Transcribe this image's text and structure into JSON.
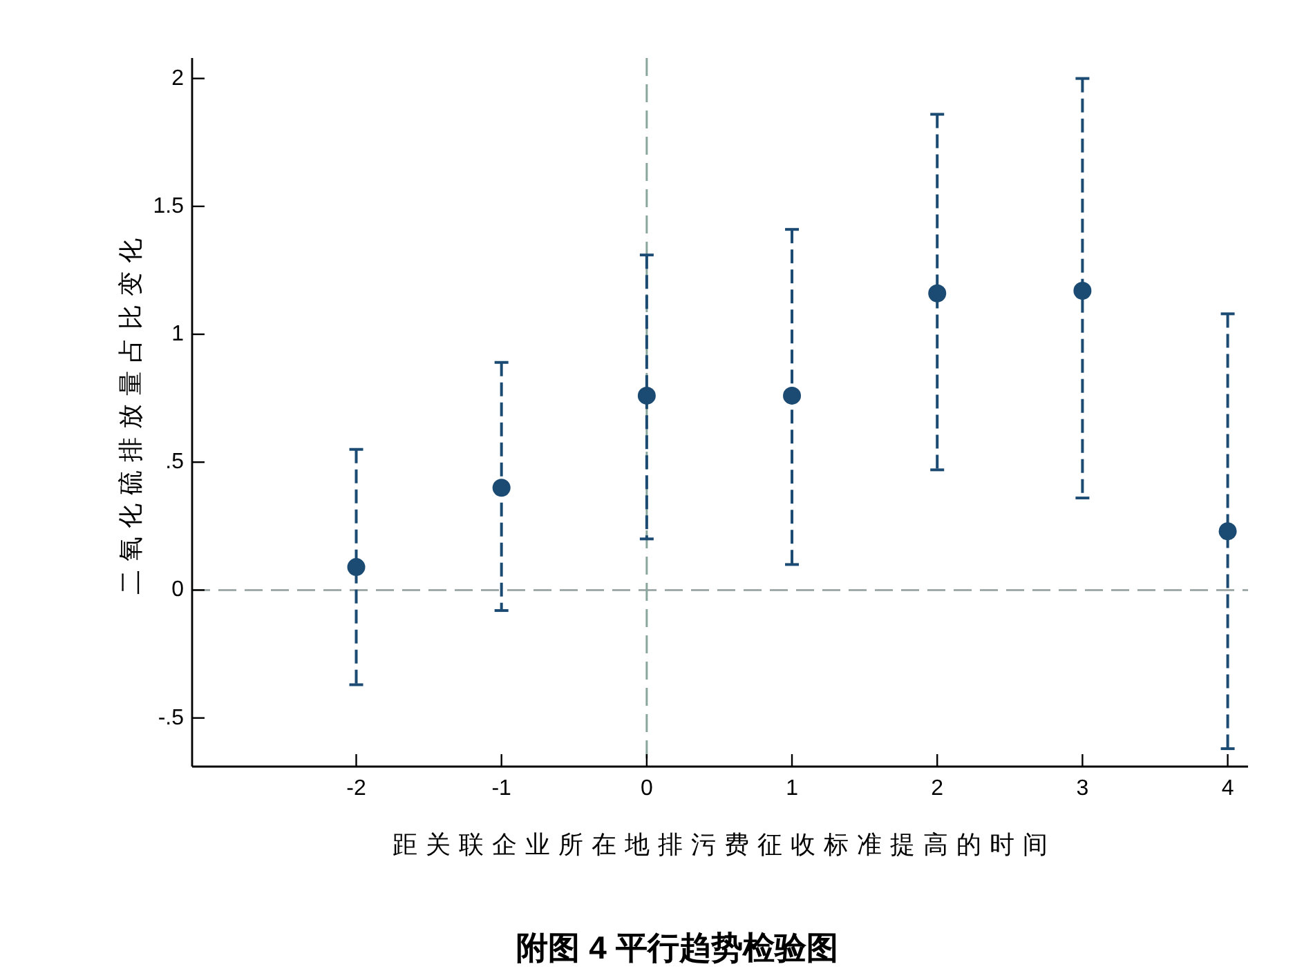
{
  "chart_data": {
    "type": "scatter",
    "title": "附图 4 平行趋势检验图",
    "xlabel": "距关联企业所在地排污费征收标准提高的时间",
    "ylabel": "二氧化硫排放量占比变化",
    "x": [
      -2,
      -1,
      0,
      1,
      2,
      3,
      4
    ],
    "series": [
      {
        "color": "#1b4a72",
        "values": [
          0.09,
          0.4,
          0.76,
          0.76,
          1.16,
          1.17,
          0.23
        ],
        "errors": [
          [
            -0.37,
            0.55
          ],
          [
            -0.08,
            0.89
          ],
          [
            0.2,
            1.31
          ],
          [
            0.1,
            1.41
          ],
          [
            0.47,
            1.86
          ],
          [
            0.36,
            2.0
          ],
          [
            -0.62,
            1.08
          ]
        ]
      }
    ],
    "marker": "circle",
    "line_style": "dashed",
    "xlim": [
      -3.13,
      4.14
    ],
    "ylim": [
      -0.69,
      2.08
    ],
    "xticks": [
      -2,
      -1,
      0,
      1,
      2,
      3,
      4
    ],
    "yticks": [
      {
        "value": -0.5,
        "label": "-.5"
      },
      0,
      {
        "value": 0.5,
        "label": ".5"
      },
      1,
      1.5,
      2
    ],
    "ref_lines": [
      {
        "axis": "y",
        "value": 0,
        "color": "#a0aaa8",
        "line_style": "dashed"
      },
      {
        "axis": "x",
        "value": 0,
        "color": "#8aa69c",
        "line_style": "dashed"
      }
    ]
  }
}
